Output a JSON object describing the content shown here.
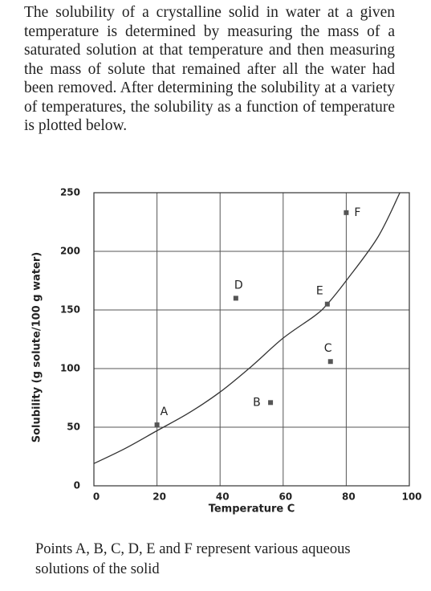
{
  "paragraph": "The solubility of a crystalline solid in water at a given temperature is determined by measuring the mass of a saturated solution at that temperature and then measuring the mass of solute that remained after all the water had been removed. After determining the solubility at a variety of temperatures, the solubility as a function of temperature is plotted below.",
  "chart_data": {
    "type": "scatter",
    "xlabel": "Temperature C",
    "ylabel": "Solubility (g solute/100 g water)",
    "xlim": [
      0,
      100
    ],
    "xticks": [
      0,
      20,
      40,
      60,
      80,
      100
    ],
    "ylim": [
      0,
      250
    ],
    "yticks": [
      0,
      50,
      100,
      150,
      200,
      250
    ],
    "grid": true,
    "color": "#333333",
    "curve": {
      "x": [
        0,
        10,
        20,
        30,
        40,
        50,
        60,
        70,
        74,
        80,
        90,
        97
      ],
      "y": [
        19,
        32,
        47,
        62,
        80,
        102,
        126,
        145,
        155,
        175,
        212,
        250
      ]
    },
    "points": {
      "labels": [
        "A",
        "B",
        "C",
        "D",
        "E",
        "F"
      ],
      "x": [
        20,
        56,
        75,
        45,
        74,
        80
      ],
      "y": [
        52,
        71,
        106,
        160,
        155,
        233
      ]
    }
  },
  "caption": "Points A, B, C, D, E and F represent various aqueous solutions of the solid"
}
